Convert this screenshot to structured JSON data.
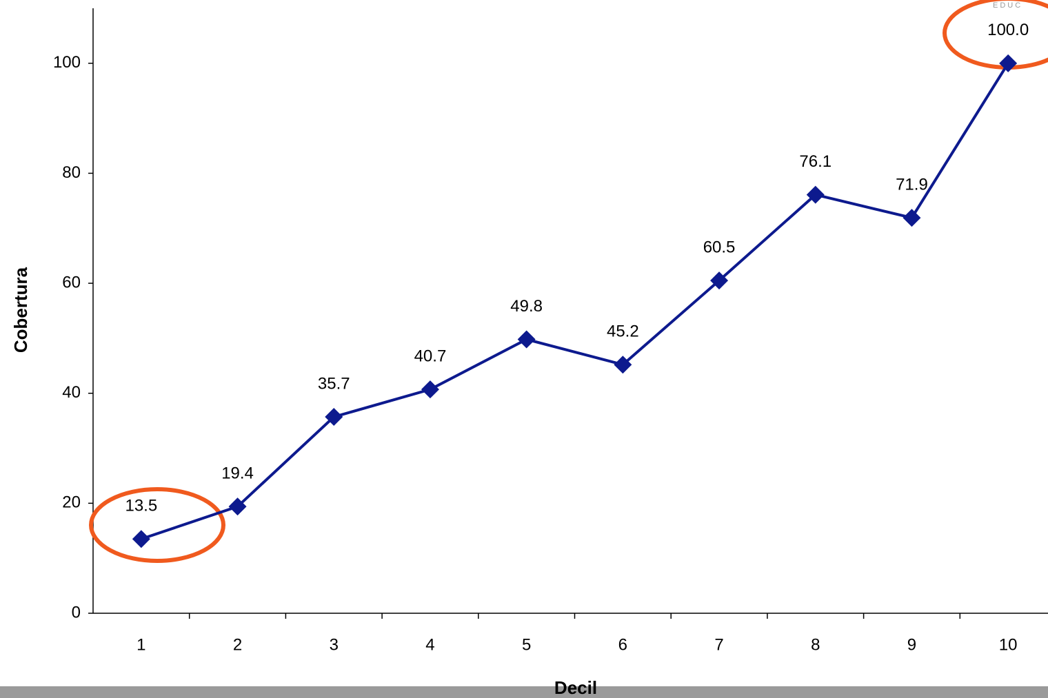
{
  "chart_data": {
    "type": "line",
    "x_label": "Decil",
    "y_label": "Cobertura",
    "categories": [
      "1",
      "2",
      "3",
      "4",
      "5",
      "6",
      "7",
      "8",
      "9",
      "10"
    ],
    "series": [
      {
        "name": "Cobertura",
        "color": "#0d1a8e",
        "values": [
          13.5,
          19.4,
          35.7,
          40.7,
          49.8,
          45.2,
          60.5,
          76.1,
          71.9,
          100
        ],
        "value_labels": [
          "13.5",
          "19.4",
          "35.7",
          "40.7",
          "49.8",
          "45.2",
          "60.5",
          "76.1",
          "71.9",
          "100.0"
        ]
      }
    ],
    "ylim": [
      0,
      110
    ],
    "yticks": [
      0,
      20,
      40,
      60,
      80,
      100
    ],
    "grid": false
  },
  "logo": "EDUC"
}
